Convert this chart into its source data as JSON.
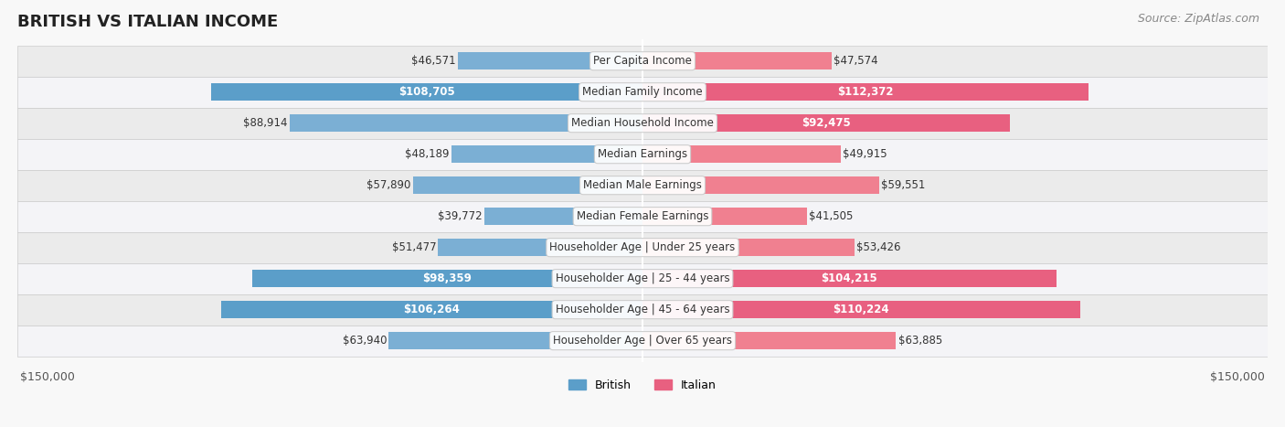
{
  "title": "BRITISH VS ITALIAN INCOME",
  "source": "Source: ZipAtlas.com",
  "categories": [
    "Per Capita Income",
    "Median Family Income",
    "Median Household Income",
    "Median Earnings",
    "Median Male Earnings",
    "Median Female Earnings",
    "Householder Age | Under 25 years",
    "Householder Age | 25 - 44 years",
    "Householder Age | 45 - 64 years",
    "Householder Age | Over 65 years"
  ],
  "british_values": [
    46571,
    108705,
    88914,
    48189,
    57890,
    39772,
    51477,
    98359,
    106264,
    63940
  ],
  "italian_values": [
    47574,
    112372,
    92475,
    49915,
    59551,
    41505,
    53426,
    104215,
    110224,
    63885
  ],
  "british_color": "#7bafd4",
  "italian_color": "#f08090",
  "british_color_strong": "#5b9ec9",
  "italian_color_strong": "#e86080",
  "bar_bg_color": "#f0f0f4",
  "row_bg_color_odd": "#f8f8fb",
  "row_bg_color_even": "#eeeeee",
  "max_value": 150000,
  "label_threshold": 90000,
  "title_fontsize": 13,
  "source_fontsize": 9,
  "axis_label_fontsize": 9,
  "bar_label_fontsize": 8.5,
  "category_fontsize": 8.5,
  "legend_fontsize": 9
}
